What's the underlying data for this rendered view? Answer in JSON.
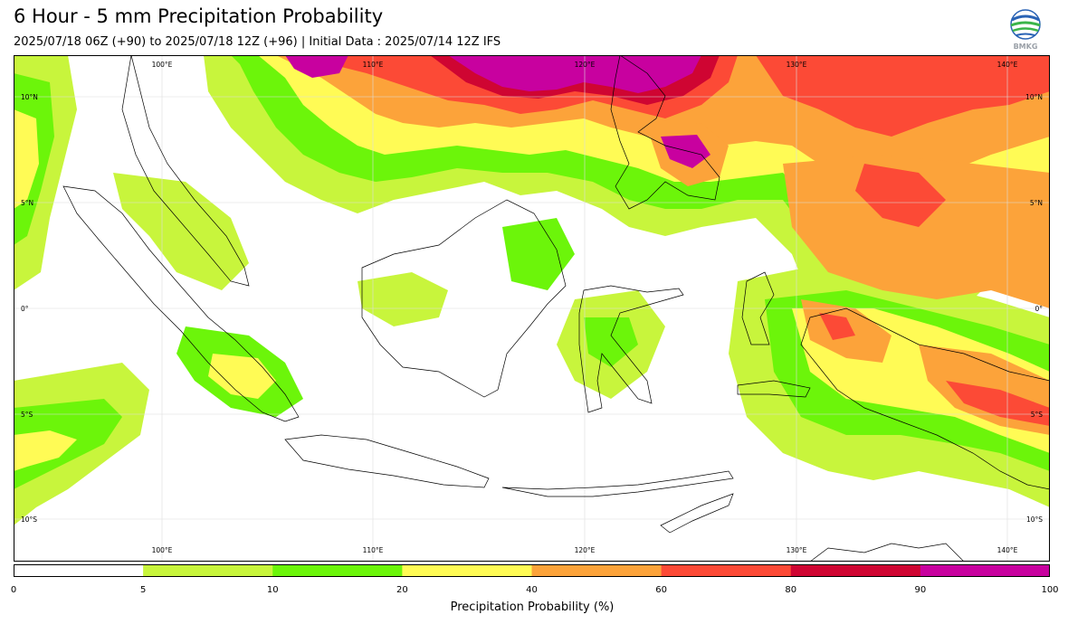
{
  "header": {
    "title": "6 Hour - 5 mm Precipitation Probability",
    "subtitle": "2025/07/18 06Z (+90) to 2025/07/18 12Z (+96) | Initial Data : 2025/07/14 12Z IFS",
    "logo_text": "BMKG"
  },
  "map": {
    "lon_labels": [
      "100°E",
      "110°E",
      "120°E",
      "130°E",
      "140°E"
    ],
    "lat_labels": [
      "10°N",
      "5°N",
      "0°",
      "5°S",
      "10°S"
    ],
    "lon_range": [
      93,
      142
    ],
    "lat_range": [
      -12,
      12
    ],
    "gridlines": true,
    "colors": {
      "land_outline": "#000000",
      "grid": "#dddddd",
      "ocean": "#ffffff"
    }
  },
  "legend": {
    "title": "Precipitation Probability (%)",
    "ticks": [
      "0",
      "5",
      "10",
      "20",
      "40",
      "60",
      "80",
      "90",
      "100"
    ],
    "bins": [
      {
        "from": 0,
        "to": 5,
        "color": "#ffffff"
      },
      {
        "from": 5,
        "to": 10,
        "color": "#c8f53c"
      },
      {
        "from": 10,
        "to": 20,
        "color": "#6cf50a"
      },
      {
        "from": 20,
        "to": 40,
        "color": "#fffb55"
      },
      {
        "from": 40,
        "to": 60,
        "color": "#fca33a"
      },
      {
        "from": 60,
        "to": 80,
        "color": "#fc4a36"
      },
      {
        "from": 80,
        "to": 90,
        "color": "#cf0532"
      },
      {
        "from": 90,
        "to": 100,
        "color": "#c8019f"
      }
    ]
  }
}
